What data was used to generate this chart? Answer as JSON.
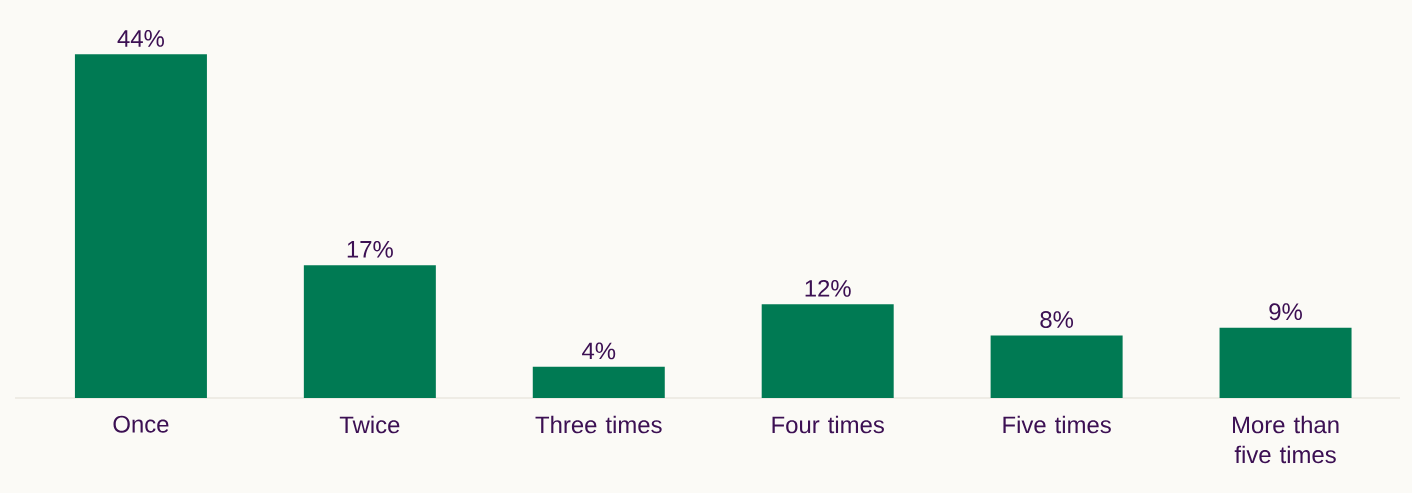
{
  "chart_data": {
    "type": "bar",
    "categories": [
      "Once",
      "Twice",
      "Three times",
      "Four times",
      "Five times",
      "More than five times"
    ],
    "values": [
      44,
      17,
      4,
      12,
      8,
      9
    ],
    "value_labels": [
      "44%",
      "17%",
      "4%",
      "12%",
      "8%",
      "9%"
    ],
    "color": "#007a53"
  }
}
